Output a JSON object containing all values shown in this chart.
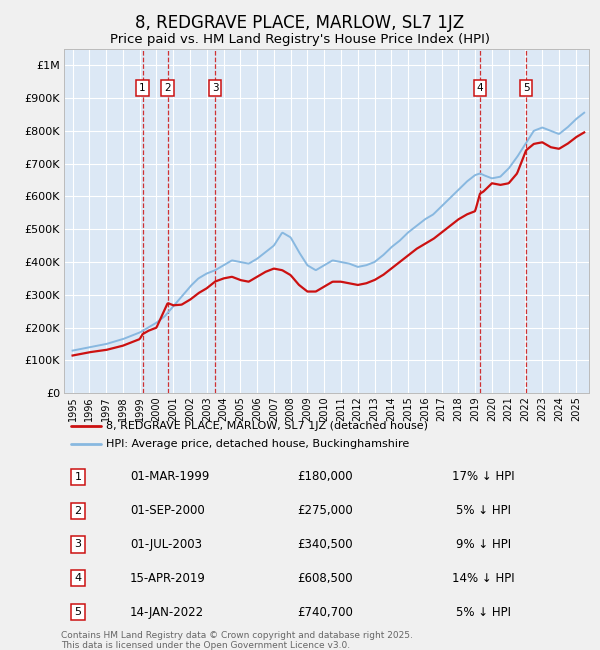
{
  "title": "8, REDGRAVE PLACE, MARLOW, SL7 1JZ",
  "subtitle": "Price paid vs. HM Land Registry's House Price Index (HPI)",
  "ylim": [
    0,
    1050000
  ],
  "yticks": [
    0,
    100000,
    200000,
    300000,
    400000,
    500000,
    600000,
    700000,
    800000,
    900000,
    1000000
  ],
  "ytick_labels": [
    "£0",
    "£100K",
    "£200K",
    "£300K",
    "£400K",
    "£500K",
    "£600K",
    "£700K",
    "£800K",
    "£900K",
    "£1M"
  ],
  "bg_color": "#f0f0f0",
  "plot_bg": "#dce8f5",
  "grid_color": "#ffffff",
  "hpi_color": "#88b8e0",
  "price_color": "#cc1111",
  "title_fontsize": 12,
  "subtitle_fontsize": 9.5,
  "transactions": [
    {
      "num": 1,
      "date_x": 1999.17,
      "price": 180000,
      "label": "01-MAR-1999",
      "price_str": "£180,000",
      "pct": "17%"
    },
    {
      "num": 2,
      "date_x": 2000.67,
      "price": 275000,
      "label": "01-SEP-2000",
      "price_str": "£275,000",
      "pct": "5%"
    },
    {
      "num": 3,
      "date_x": 2003.5,
      "price": 340500,
      "label": "01-JUL-2003",
      "price_str": "£340,500",
      "pct": "9%"
    },
    {
      "num": 4,
      "date_x": 2019.29,
      "price": 608500,
      "label": "15-APR-2019",
      "price_str": "£608,500",
      "pct": "14%"
    },
    {
      "num": 5,
      "date_x": 2022.04,
      "price": 740700,
      "label": "14-JAN-2022",
      "price_str": "£740,700",
      "pct": "5%"
    }
  ],
  "footer": "Contains HM Land Registry data © Crown copyright and database right 2025.\nThis data is licensed under the Open Government Licence v3.0.",
  "legend_label_price": "8, REDGRAVE PLACE, MARLOW, SL7 1JZ (detached house)",
  "legend_label_hpi": "HPI: Average price, detached house, Buckinghamshire",
  "xlim_start": 1994.5,
  "xlim_end": 2025.8,
  "xticks": [
    1995,
    1996,
    1997,
    1998,
    1999,
    2000,
    2001,
    2002,
    2003,
    2004,
    2005,
    2006,
    2007,
    2008,
    2009,
    2010,
    2011,
    2012,
    2013,
    2014,
    2015,
    2016,
    2017,
    2018,
    2019,
    2020,
    2021,
    2022,
    2023,
    2024,
    2025
  ],
  "hpi_knots": [
    [
      1995.0,
      130000
    ],
    [
      1996.0,
      140000
    ],
    [
      1997.0,
      150000
    ],
    [
      1998.0,
      165000
    ],
    [
      1999.0,
      185000
    ],
    [
      1999.5,
      200000
    ],
    [
      2000.0,
      215000
    ],
    [
      2000.5,
      235000
    ],
    [
      2001.0,
      265000
    ],
    [
      2001.5,
      295000
    ],
    [
      2002.0,
      325000
    ],
    [
      2002.5,
      350000
    ],
    [
      2003.0,
      365000
    ],
    [
      2003.5,
      375000
    ],
    [
      2004.0,
      390000
    ],
    [
      2004.5,
      405000
    ],
    [
      2005.0,
      400000
    ],
    [
      2005.5,
      395000
    ],
    [
      2006.0,
      410000
    ],
    [
      2006.5,
      430000
    ],
    [
      2007.0,
      450000
    ],
    [
      2007.5,
      490000
    ],
    [
      2008.0,
      475000
    ],
    [
      2008.5,
      430000
    ],
    [
      2009.0,
      390000
    ],
    [
      2009.5,
      375000
    ],
    [
      2010.0,
      390000
    ],
    [
      2010.5,
      405000
    ],
    [
      2011.0,
      400000
    ],
    [
      2011.5,
      395000
    ],
    [
      2012.0,
      385000
    ],
    [
      2012.5,
      390000
    ],
    [
      2013.0,
      400000
    ],
    [
      2013.5,
      420000
    ],
    [
      2014.0,
      445000
    ],
    [
      2014.5,
      465000
    ],
    [
      2015.0,
      490000
    ],
    [
      2015.5,
      510000
    ],
    [
      2016.0,
      530000
    ],
    [
      2016.5,
      545000
    ],
    [
      2017.0,
      570000
    ],
    [
      2017.5,
      595000
    ],
    [
      2018.0,
      620000
    ],
    [
      2018.5,
      645000
    ],
    [
      2019.0,
      665000
    ],
    [
      2019.3,
      670000
    ],
    [
      2019.5,
      665000
    ],
    [
      2020.0,
      655000
    ],
    [
      2020.5,
      660000
    ],
    [
      2021.0,
      685000
    ],
    [
      2021.5,
      720000
    ],
    [
      2022.0,
      760000
    ],
    [
      2022.5,
      800000
    ],
    [
      2023.0,
      810000
    ],
    [
      2023.5,
      800000
    ],
    [
      2024.0,
      790000
    ],
    [
      2024.5,
      810000
    ],
    [
      2025.0,
      835000
    ],
    [
      2025.5,
      855000
    ]
  ],
  "price_knots": [
    [
      1995.0,
      115000
    ],
    [
      1996.0,
      125000
    ],
    [
      1997.0,
      132000
    ],
    [
      1998.0,
      145000
    ],
    [
      1999.0,
      165000
    ],
    [
      1999.17,
      180000
    ],
    [
      1999.5,
      190000
    ],
    [
      2000.0,
      200000
    ],
    [
      2000.67,
      275000
    ],
    [
      2001.0,
      268000
    ],
    [
      2001.5,
      270000
    ],
    [
      2002.0,
      285000
    ],
    [
      2002.5,
      305000
    ],
    [
      2003.0,
      320000
    ],
    [
      2003.5,
      340500
    ],
    [
      2004.0,
      350000
    ],
    [
      2004.5,
      355000
    ],
    [
      2005.0,
      345000
    ],
    [
      2005.5,
      340000
    ],
    [
      2006.0,
      355000
    ],
    [
      2006.5,
      370000
    ],
    [
      2007.0,
      380000
    ],
    [
      2007.5,
      375000
    ],
    [
      2008.0,
      360000
    ],
    [
      2008.5,
      330000
    ],
    [
      2009.0,
      310000
    ],
    [
      2009.5,
      310000
    ],
    [
      2010.0,
      325000
    ],
    [
      2010.5,
      340000
    ],
    [
      2011.0,
      340000
    ],
    [
      2011.5,
      335000
    ],
    [
      2012.0,
      330000
    ],
    [
      2012.5,
      335000
    ],
    [
      2013.0,
      345000
    ],
    [
      2013.5,
      360000
    ],
    [
      2014.0,
      380000
    ],
    [
      2014.5,
      400000
    ],
    [
      2015.0,
      420000
    ],
    [
      2015.5,
      440000
    ],
    [
      2016.0,
      455000
    ],
    [
      2016.5,
      470000
    ],
    [
      2017.0,
      490000
    ],
    [
      2017.5,
      510000
    ],
    [
      2018.0,
      530000
    ],
    [
      2018.5,
      545000
    ],
    [
      2019.0,
      555000
    ],
    [
      2019.29,
      608500
    ],
    [
      2019.5,
      615000
    ],
    [
      2020.0,
      640000
    ],
    [
      2020.5,
      635000
    ],
    [
      2021.0,
      640000
    ],
    [
      2021.5,
      670000
    ],
    [
      2022.04,
      740700
    ],
    [
      2022.5,
      760000
    ],
    [
      2023.0,
      765000
    ],
    [
      2023.5,
      750000
    ],
    [
      2024.0,
      745000
    ],
    [
      2024.5,
      760000
    ],
    [
      2025.0,
      780000
    ],
    [
      2025.5,
      795000
    ]
  ]
}
